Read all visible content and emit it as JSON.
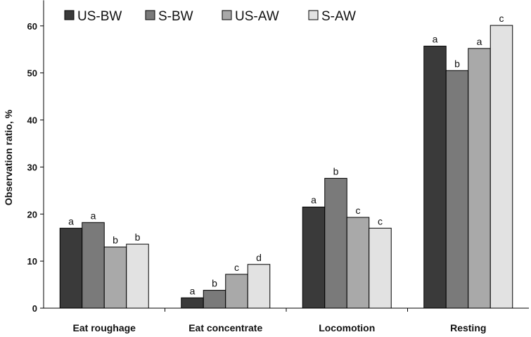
{
  "chart_data": {
    "type": "bar",
    "ylabel": "Observation ratio, %",
    "xlabel": "",
    "title": "",
    "ylim": [
      0,
      65
    ],
    "yticks": [
      0,
      10,
      20,
      30,
      40,
      50,
      60
    ],
    "grid": false,
    "legend_position": "top-left",
    "categories": [
      "Eat roughage",
      "Eat concentrate",
      "Locomotion",
      "Resting"
    ],
    "series": [
      {
        "name": "US-BW",
        "color": "#3a3a3a",
        "values": [
          17.0,
          2.2,
          21.5,
          55.7
        ],
        "letters": [
          "a",
          "a",
          "a",
          "a"
        ]
      },
      {
        "name": "S-BW",
        "color": "#7a7a7a",
        "values": [
          18.2,
          3.8,
          27.6,
          50.5
        ],
        "letters": [
          "a",
          "b",
          "b",
          "b"
        ]
      },
      {
        "name": "US-AW",
        "color": "#a9a9a9",
        "values": [
          13.0,
          7.2,
          19.3,
          55.2
        ],
        "letters": [
          "b",
          "c",
          "c",
          "a"
        ]
      },
      {
        "name": "S-AW",
        "color": "#e2e2e2",
        "values": [
          13.6,
          9.3,
          17.0,
          60.1
        ],
        "letters": [
          "b",
          "d",
          "c",
          "c"
        ]
      }
    ]
  }
}
